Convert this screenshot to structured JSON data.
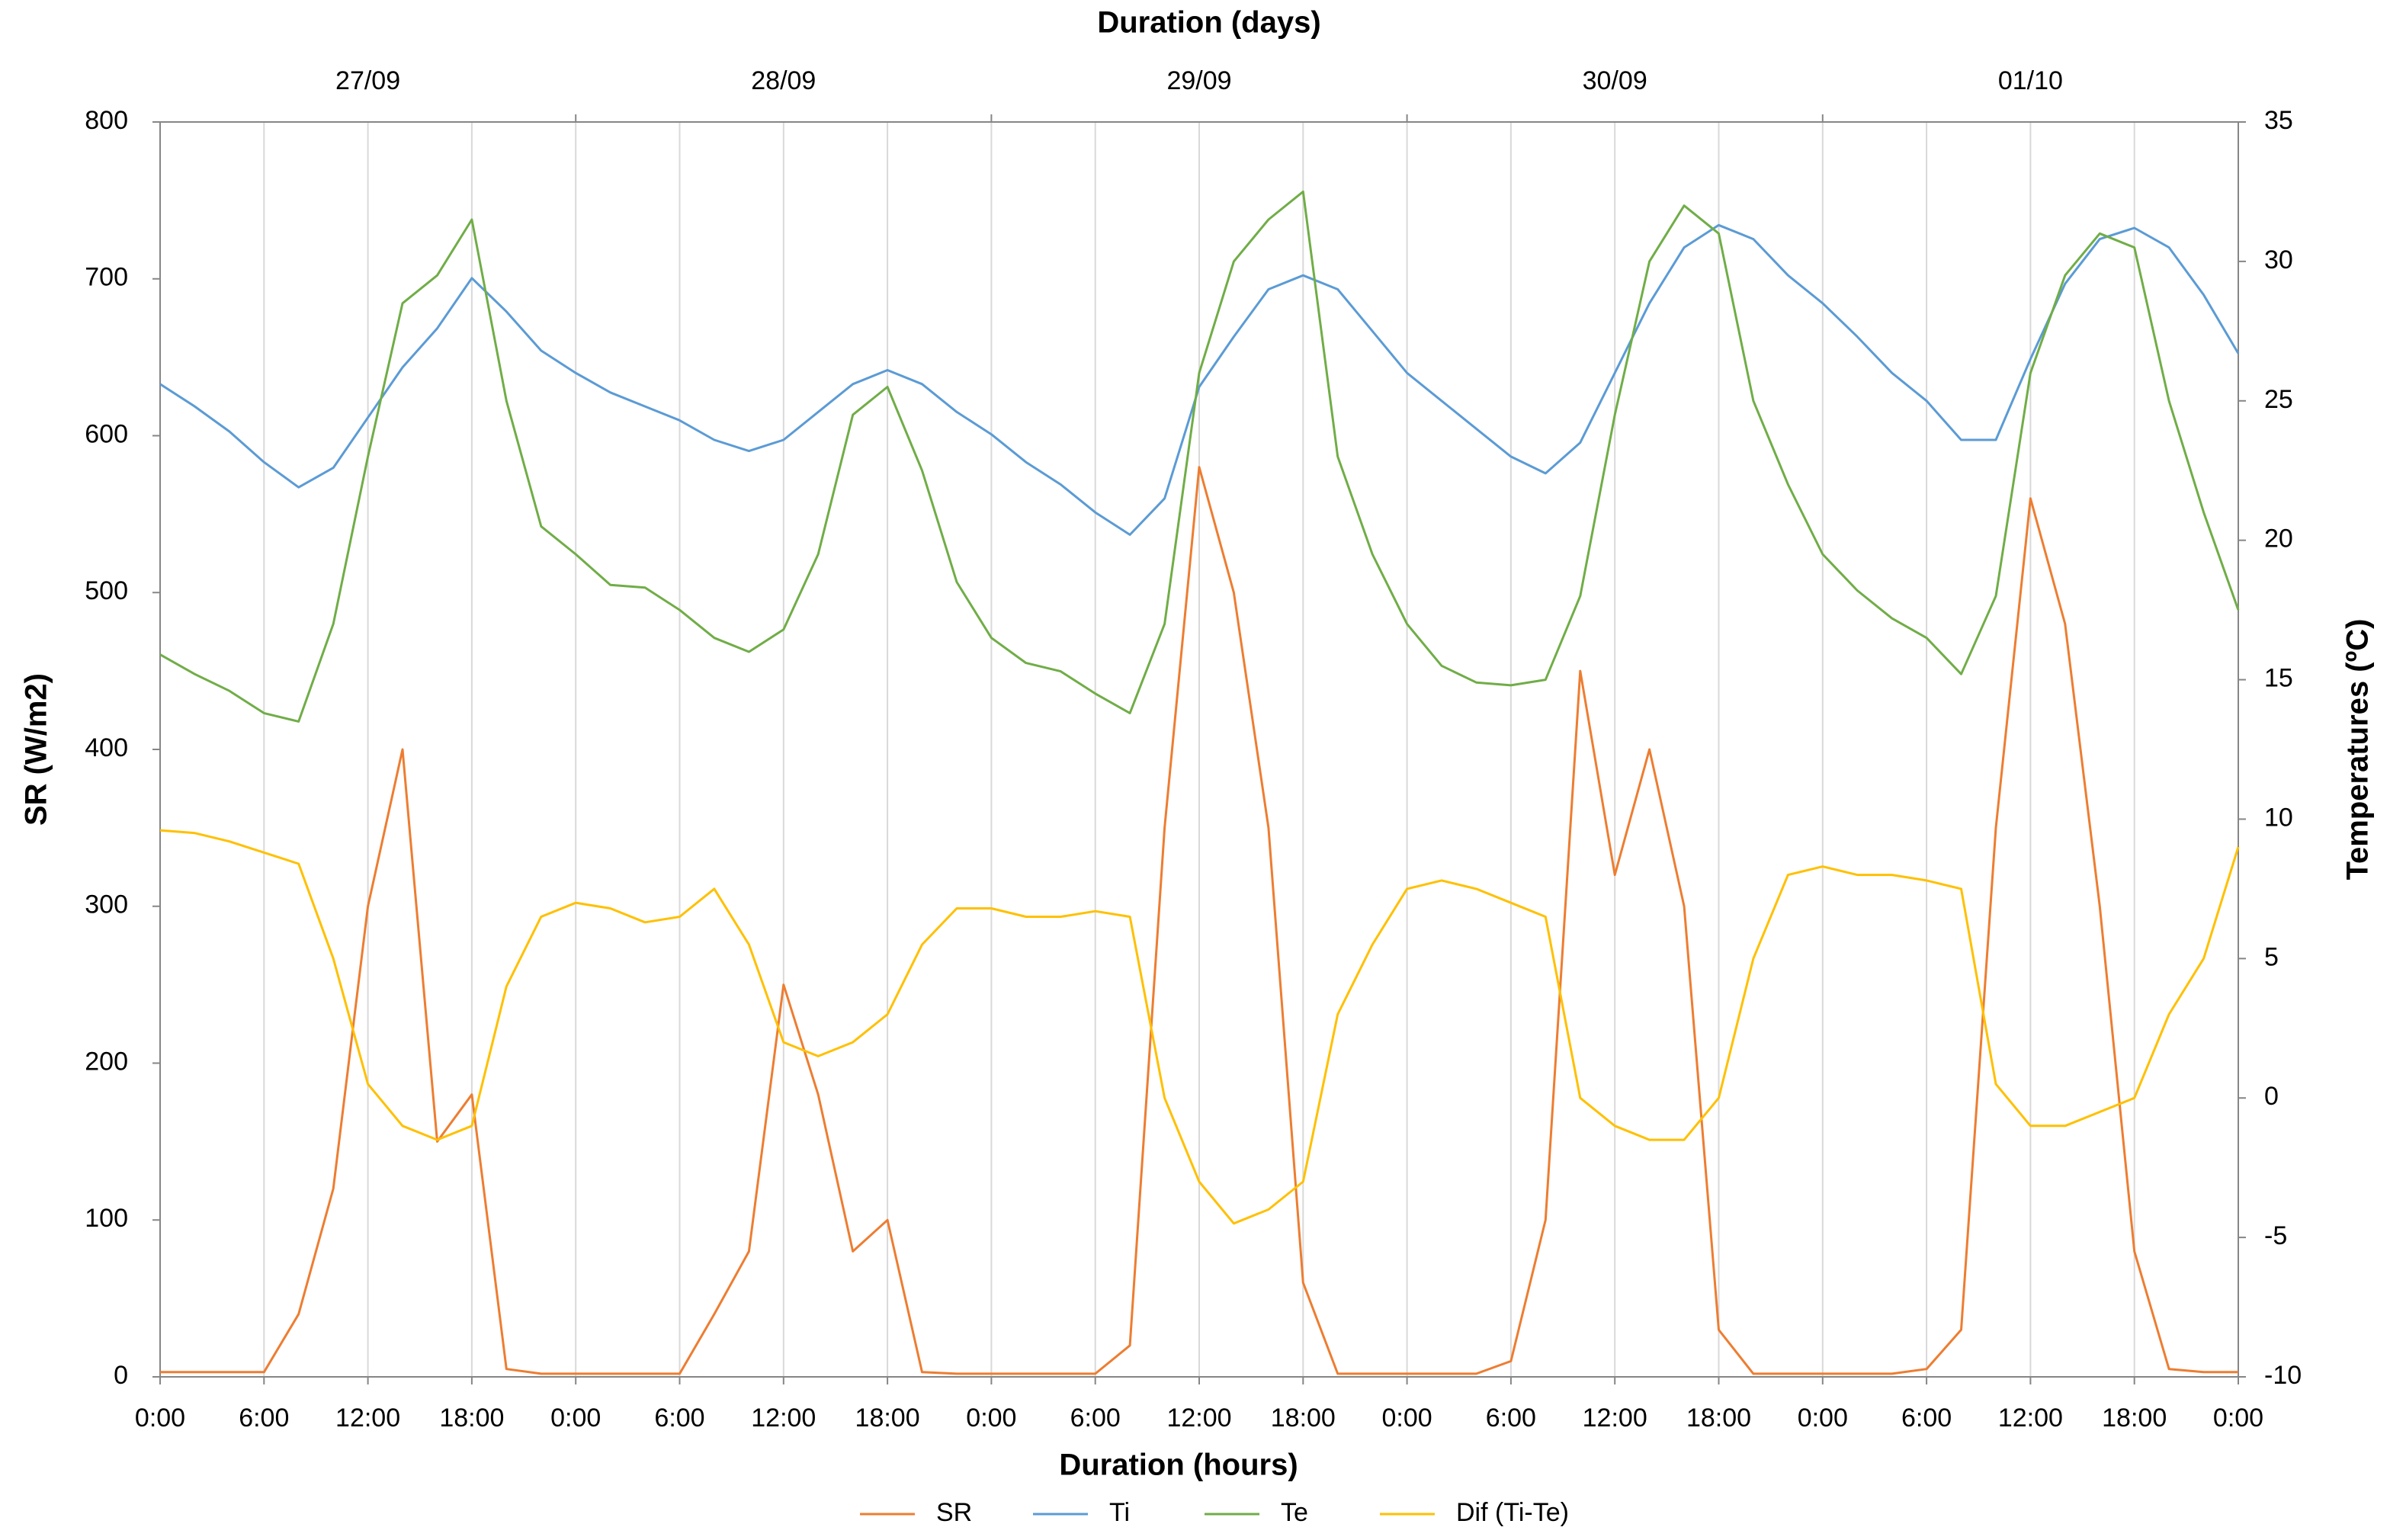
{
  "chart_data": {
    "type": "line",
    "xlabel": "Duration (hours)",
    "ylabel": "SR (W/m2)",
    "y2label": "Temperatures (ºC)",
    "x2label": "Duration (days)",
    "x2categories": [
      "27/09",
      "28/09",
      "29/09",
      "30/09",
      "01/10"
    ],
    "x": [
      0,
      2,
      4,
      6,
      8,
      10,
      12,
      14,
      16,
      18,
      20,
      22,
      24,
      26,
      28,
      30,
      32,
      34,
      36,
      38,
      40,
      42,
      44,
      46,
      48,
      50,
      52,
      54,
      56,
      58,
      60,
      62,
      64,
      66,
      68,
      70,
      72,
      74,
      76,
      78,
      80,
      82,
      84,
      86,
      88,
      90,
      92,
      94,
      96,
      98,
      100,
      102,
      104,
      106,
      108,
      110,
      112,
      114,
      116,
      118,
      120
    ],
    "xlim": [
      0,
      120
    ],
    "xticks": [
      {
        "value": 0,
        "label": "0:00"
      },
      {
        "value": 6,
        "label": "6:00"
      },
      {
        "value": 12,
        "label": "12:00"
      },
      {
        "value": 18,
        "label": "18:00"
      },
      {
        "value": 24,
        "label": "0:00"
      },
      {
        "value": 30,
        "label": "6:00"
      },
      {
        "value": 36,
        "label": "12:00"
      },
      {
        "value": 42,
        "label": "18:00"
      },
      {
        "value": 48,
        "label": "0:00"
      },
      {
        "value": 54,
        "label": "6:00"
      },
      {
        "value": 60,
        "label": "12:00"
      },
      {
        "value": 66,
        "label": "18:00"
      },
      {
        "value": 72,
        "label": "0:00"
      },
      {
        "value": 78,
        "label": "6:00"
      },
      {
        "value": 84,
        "label": "12:00"
      },
      {
        "value": 90,
        "label": "18:00"
      },
      {
        "value": 96,
        "label": "0:00"
      },
      {
        "value": 102,
        "label": "6:00"
      },
      {
        "value": 108,
        "label": "12:00"
      },
      {
        "value": 114,
        "label": "18:00"
      },
      {
        "value": 120,
        "label": "0:00"
      }
    ],
    "ylim": [
      0,
      800
    ],
    "yticks": [
      0,
      100,
      200,
      300,
      400,
      500,
      600,
      700,
      800
    ],
    "y2lim": [
      -10,
      35
    ],
    "y2ticks": [
      -10,
      -5,
      0,
      5,
      10,
      15,
      20,
      25,
      30,
      35
    ],
    "grid": "x",
    "series": [
      {
        "name": "SR",
        "color": "#ED7D31",
        "values": [
          3,
          3,
          3,
          3,
          40,
          120,
          300,
          400,
          150,
          180,
          5,
          2,
          2,
          2,
          2,
          2,
          40,
          80,
          250,
          180,
          80,
          100,
          3,
          2,
          2,
          2,
          2,
          2,
          20,
          350,
          580,
          500,
          350,
          60,
          2,
          2,
          2,
          2,
          2,
          10,
          100,
          450,
          320,
          400,
          300,
          30,
          2,
          2,
          2,
          2,
          2,
          5,
          30,
          350,
          560,
          480,
          300,
          80,
          5,
          3,
          3
        ]
      },
      {
        "name": "Ti",
        "color": "#5B9BD5",
        "axis": "y2",
        "values": [
          25.6,
          24.8,
          23.9,
          22.8,
          21.9,
          22.6,
          24.4,
          26.2,
          27.6,
          29.4,
          28.2,
          26.8,
          26.0,
          25.3,
          24.8,
          24.3,
          23.6,
          23.2,
          23.6,
          24.6,
          25.6,
          26.1,
          25.6,
          24.6,
          23.8,
          22.8,
          22.0,
          21.0,
          20.2,
          21.5,
          25.5,
          27.3,
          29.0,
          29.5,
          29.0,
          27.5,
          26.0,
          25.0,
          24.0,
          23.0,
          22.4,
          23.5,
          26.0,
          28.5,
          30.5,
          31.3,
          30.8,
          29.5,
          28.5,
          27.3,
          26.0,
          25.0,
          23.6,
          23.6,
          26.5,
          29.2,
          30.8,
          31.2,
          30.5,
          28.8,
          26.7
        ]
      },
      {
        "name": "Te",
        "color": "#70AD47",
        "axis": "y2",
        "values": [
          15.9,
          15.2,
          14.6,
          13.8,
          13.5,
          17.0,
          23.0,
          28.5,
          29.5,
          31.5,
          25.0,
          20.5,
          19.5,
          18.4,
          18.3,
          17.5,
          16.5,
          16.0,
          16.8,
          19.5,
          24.5,
          25.5,
          22.5,
          18.5,
          16.5,
          15.6,
          15.3,
          14.5,
          13.8,
          17.0,
          26.0,
          30.0,
          31.5,
          32.5,
          23.0,
          19.5,
          17.0,
          15.5,
          14.9,
          14.8,
          15.0,
          18.0,
          24.5,
          30.0,
          32.0,
          31.0,
          25.0,
          22.0,
          19.5,
          18.2,
          17.2,
          16.5,
          15.2,
          18.0,
          26.0,
          29.5,
          31.0,
          30.5,
          25.0,
          21.0,
          17.5
        ]
      },
      {
        "name": "Dif (Ti-Te)",
        "color": "#FFC000",
        "axis": "y2",
        "values": [
          9.6,
          9.5,
          9.2,
          8.8,
          8.4,
          5.0,
          0.5,
          -1.0,
          -1.5,
          -1.0,
          4.0,
          6.5,
          7.0,
          6.8,
          6.3,
          6.5,
          7.5,
          5.5,
          2.0,
          1.5,
          2.0,
          3.0,
          5.5,
          6.8,
          6.8,
          6.5,
          6.5,
          6.7,
          6.5,
          0.0,
          -3.0,
          -4.5,
          -4.0,
          -3.0,
          3.0,
          5.5,
          7.5,
          7.8,
          7.5,
          7.0,
          6.5,
          0.0,
          -1.0,
          -1.5,
          -1.5,
          0.0,
          5.0,
          8.0,
          8.3,
          8.0,
          8.0,
          7.8,
          7.5,
          0.5,
          -1.0,
          -1.0,
          -0.5,
          0.0,
          3.0,
          5.0,
          9.0
        ]
      }
    ]
  }
}
